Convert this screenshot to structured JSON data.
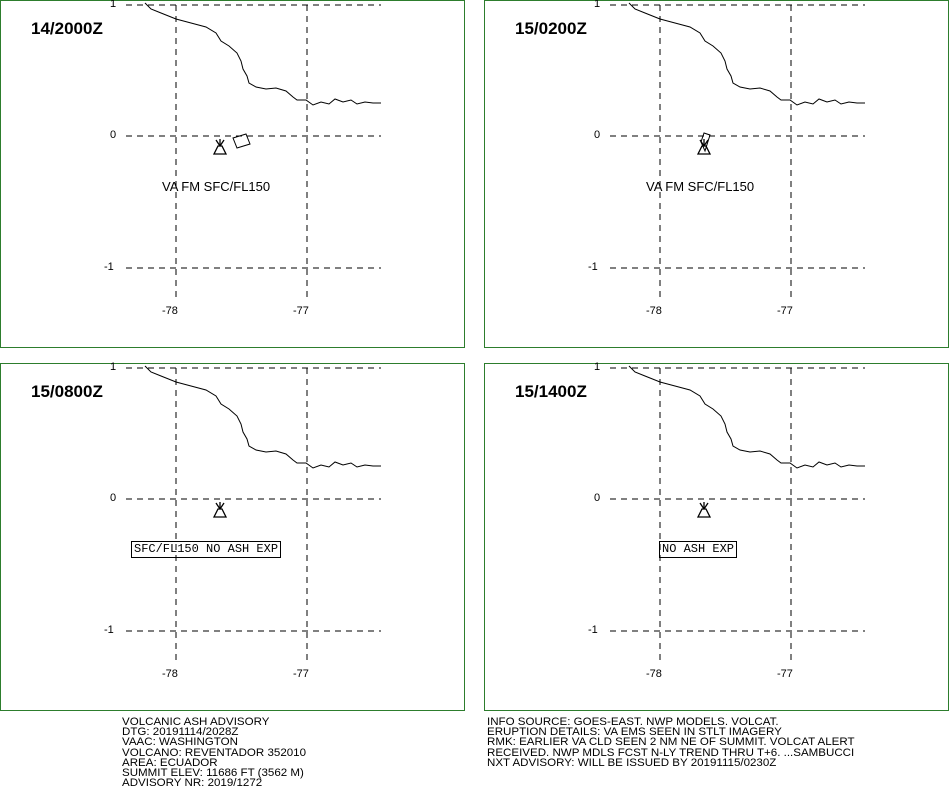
{
  "panels": [
    {
      "time": "14/2000Z",
      "va_text": "VA FM SFC/FL150",
      "boxed_text": "",
      "ash_polygon": true
    },
    {
      "time": "15/0200Z",
      "va_text": "VA FM SFC/FL150",
      "boxed_text": "",
      "ash_polygon": true
    },
    {
      "time": "15/0800Z",
      "va_text": "",
      "boxed_text": "SFC/FL150 NO ASH EXP",
      "ash_polygon": false
    },
    {
      "time": "15/1400Z",
      "va_text": "",
      "boxed_text": "NO ASH EXP",
      "ash_polygon": false
    }
  ],
  "lat_labels": [
    "1",
    "0",
    "-1"
  ],
  "lon_labels": [
    "-78",
    "-77"
  ],
  "advisory_left": [
    "VOLCANIC ASH ADVISORY",
    "DTG: 20191114/2028Z",
    "VAAC: WASHINGTON",
    "VOLCANO: REVENTADOR 352010",
    "AREA: ECUADOR",
    "SUMMIT ELEV: 11686 FT (3562 M)",
    "ADVISORY NR: 2019/1272"
  ],
  "advisory_right": [
    "INFO SOURCE: GOES-EAST. NWP MODELS. VOLCAT.",
    "ERUPTION DETAILS: VA EMS SEEN IN STLT IMAGERY",
    "RMK: EARLIER VA CLD SEEN 2 NM NE OF SUMMIT. VOLCAT ALERT",
    "RECEIVED. NWP MDLS FCST N-LY TREND THRU T+6. ...SAMBUCCI",
    "NXT ADVISORY: WILL BE ISSUED BY 20191115/0230Z"
  ],
  "colors": {
    "panel_border": "#2d7d2d",
    "ink": "#000000"
  },
  "icons": [
    "volcano-icon"
  ]
}
